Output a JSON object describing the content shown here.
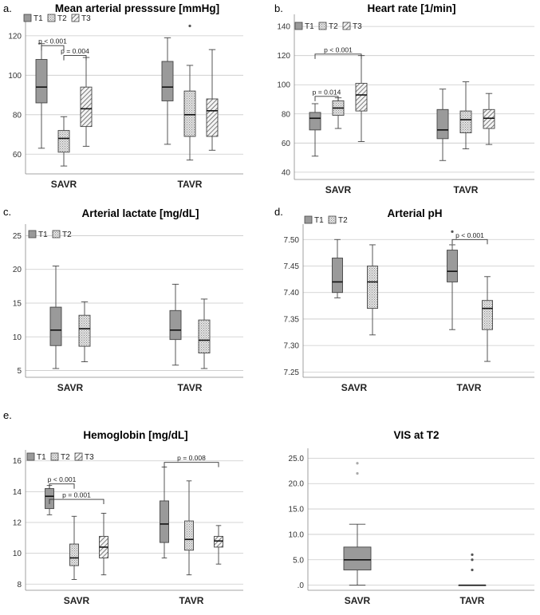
{
  "chart_data": [
    {
      "letter": "a.",
      "type": "boxplot",
      "title": "Mean arterial presssure [mmHg]",
      "categories": [
        "SAVR",
        "TAVR"
      ],
      "legend": [
        "T1",
        "T2",
        "T3"
      ],
      "yticks": [
        "60",
        "80",
        "100",
        "120"
      ],
      "ylim": [
        50,
        126
      ],
      "series": [
        {
          "name": "T1",
          "boxes": [
            {
              "min": 63,
              "q1": 86,
              "median": 94,
              "q3": 108,
              "max": 116
            },
            {
              "min": 65,
              "q1": 87,
              "median": 94,
              "q3": 107,
              "max": 119
            }
          ]
        },
        {
          "name": "T2",
          "boxes": [
            {
              "min": 54,
              "q1": 61,
              "median": 68,
              "q3": 72,
              "max": 79
            },
            {
              "min": 57,
              "q1": 69,
              "median": 80,
              "q3": 92,
              "max": 105
            }
          ]
        },
        {
          "name": "T3",
          "boxes": [
            {
              "min": 64,
              "q1": 74,
              "median": 83,
              "q3": 94,
              "max": 109
            },
            {
              "min": 62,
              "q1": 69,
              "median": 82,
              "q3": 88,
              "max": 113
            }
          ]
        }
      ],
      "outliers": [
        {
          "cat": 1,
          "series": 1,
          "y": 125
        }
      ],
      "annotations": [
        {
          "label": "p < 0.001",
          "from": [
            0,
            0
          ],
          "to": [
            0,
            1
          ],
          "y": 115
        },
        {
          "label": "p = 0.004",
          "from": [
            0,
            1
          ],
          "to": [
            0,
            2
          ],
          "y": 110
        }
      ]
    },
    {
      "letter": "b.",
      "type": "boxplot",
      "title": "Heart rate [1/min]",
      "categories": [
        "SAVR",
        "TAVR"
      ],
      "legend": [
        "T1",
        "T2",
        "T3"
      ],
      "yticks": [
        "40",
        "60",
        "80",
        "100",
        "120",
        "140"
      ],
      "ylim": [
        35,
        145
      ],
      "series": [
        {
          "name": "T1",
          "boxes": [
            {
              "min": 51,
              "q1": 69,
              "median": 77,
              "q3": 81,
              "max": 87
            },
            {
              "min": 48,
              "q1": 63,
              "median": 69,
              "q3": 83,
              "max": 97
            }
          ]
        },
        {
          "name": "T2",
          "boxes": [
            {
              "min": 70,
              "q1": 79,
              "median": 84,
              "q3": 89,
              "max": 91
            },
            {
              "min": 56,
              "q1": 67,
              "median": 76,
              "q3": 82,
              "max": 102
            }
          ]
        },
        {
          "name": "T3",
          "boxes": [
            {
              "min": 61,
              "q1": 82,
              "median": 93,
              "q3": 101,
              "max": 120
            },
            {
              "min": 59,
              "q1": 70,
              "median": 77,
              "q3": 83,
              "max": 94
            }
          ]
        }
      ],
      "outliers": [],
      "annotations": [
        {
          "label": "p = 0.014",
          "from": [
            0,
            0
          ],
          "to": [
            0,
            1
          ],
          "y": 92
        },
        {
          "label": "p < 0.001",
          "from": [
            0,
            0
          ],
          "to": [
            0,
            2
          ],
          "y": 121
        }
      ]
    },
    {
      "letter": "c.",
      "type": "boxplot",
      "title": "Arterial lactate [mg/dL]",
      "categories": [
        "SAVR",
        "TAVR"
      ],
      "legend": [
        "T1",
        "T2"
      ],
      "yticks": [
        "5",
        "10",
        "15",
        "20",
        "25"
      ],
      "ylim": [
        4,
        26
      ],
      "series": [
        {
          "name": "T1",
          "boxes": [
            {
              "min": 5.3,
              "q1": 8.7,
              "median": 11.0,
              "q3": 14.4,
              "max": 20.5
            },
            {
              "min": 5.8,
              "q1": 9.6,
              "median": 11.0,
              "q3": 13.9,
              "max": 17.8
            }
          ]
        },
        {
          "name": "T2",
          "boxes": [
            {
              "min": 6.3,
              "q1": 8.6,
              "median": 11.2,
              "q3": 13.2,
              "max": 15.2
            },
            {
              "min": 5.3,
              "q1": 7.6,
              "median": 9.5,
              "q3": 12.5,
              "max": 15.6
            }
          ]
        }
      ],
      "outliers": [],
      "annotations": []
    },
    {
      "letter": "d.",
      "type": "boxplot",
      "title": "Arterial pH",
      "categories": [
        "SAVR",
        "TAVR"
      ],
      "legend": [
        "T1",
        "T2"
      ],
      "yticks": [
        "7.25",
        "7.30",
        "7.35",
        "7.40",
        "7.45",
        "7.50"
      ],
      "ylim": [
        7.24,
        7.52
      ],
      "series": [
        {
          "name": "T1",
          "boxes": [
            {
              "min": 7.39,
              "q1": 7.4,
              "median": 7.42,
              "q3": 7.465,
              "max": 7.5
            },
            {
              "min": 7.33,
              "q1": 7.42,
              "median": 7.44,
              "q3": 7.48,
              "max": 7.49
            }
          ]
        },
        {
          "name": "T2",
          "boxes": [
            {
              "min": 7.32,
              "q1": 7.37,
              "median": 7.42,
              "q3": 7.45,
              "max": 7.49
            },
            {
              "min": 7.27,
              "q1": 7.33,
              "median": 7.37,
              "q3": 7.385,
              "max": 7.43
            }
          ]
        }
      ],
      "outliers": [
        {
          "cat": 1,
          "series": 0,
          "y": 7.515
        }
      ],
      "annotations": [
        {
          "label": "p < 0.001",
          "from": [
            1,
            0
          ],
          "to": [
            1,
            1
          ],
          "y": 7.5
        }
      ]
    },
    {
      "letter": "e.",
      "type": "boxplot",
      "title": "Hemoglobin [mg/dL]",
      "categories": [
        "SAVR",
        "TAVR"
      ],
      "legend": [
        "T1",
        "T2",
        "T3"
      ],
      "yticks": [
        "8",
        "10",
        "12",
        "14",
        "16"
      ],
      "ylim": [
        7.6,
        16.4
      ],
      "series": [
        {
          "name": "T1",
          "boxes": [
            {
              "min": 12.5,
              "q1": 12.9,
              "median": 13.7,
              "q3": 14.2,
              "max": 14.4
            },
            {
              "min": 9.7,
              "q1": 10.7,
              "median": 11.9,
              "q3": 13.4,
              "max": 15.6
            }
          ]
        },
        {
          "name": "T2",
          "boxes": [
            {
              "min": 8.3,
              "q1": 9.2,
              "median": 9.7,
              "q3": 10.6,
              "max": 12.4
            },
            {
              "min": 8.6,
              "q1": 10.2,
              "median": 10.9,
              "q3": 12.1,
              "max": 14.7
            }
          ]
        },
        {
          "name": "T3",
          "boxes": [
            {
              "min": 8.6,
              "q1": 9.7,
              "median": 10.4,
              "q3": 11.1,
              "max": 12.6
            },
            {
              "min": 9.3,
              "q1": 10.4,
              "median": 10.8,
              "q3": 11.1,
              "max": 11.8
            }
          ]
        }
      ],
      "outliers": [],
      "annotations": [
        {
          "label": "p < 0.001",
          "from": [
            0,
            0
          ],
          "to": [
            0,
            1
          ],
          "y": 14.5
        },
        {
          "label": "p = 0.001",
          "from": [
            0,
            0
          ],
          "to": [
            0,
            2
          ],
          "y": 13.5
        },
        {
          "label": "p = 0.008",
          "from": [
            1,
            0
          ],
          "to": [
            1,
            2
          ],
          "y": 15.9
        }
      ]
    },
    {
      "letter": "",
      "type": "boxplot",
      "title": "VIS at T2",
      "categories": [
        "SAVR",
        "TAVR"
      ],
      "legend": [],
      "yticks": [
        ".0",
        "5.0",
        "10.0",
        "15.0",
        "20.0",
        "25.0"
      ],
      "ylim": [
        -1,
        26
      ],
      "series": [
        {
          "name": "",
          "boxes": [
            {
              "min": 0,
              "q1": 3,
              "median": 5,
              "q3": 7.5,
              "max": 12
            },
            {
              "min": 0,
              "q1": 0,
              "median": 0,
              "q3": 0,
              "max": 0
            }
          ]
        }
      ],
      "outliers": [
        {
          "cat": 0,
          "series": 0,
          "y": 22
        },
        {
          "cat": 0,
          "series": 0,
          "y": 24
        },
        {
          "cat": 1,
          "series": 0,
          "y": 3
        },
        {
          "cat": 1,
          "series": 0,
          "y": 5
        },
        {
          "cat": 1,
          "series": 0,
          "y": 6
        }
      ],
      "annotations": []
    }
  ]
}
